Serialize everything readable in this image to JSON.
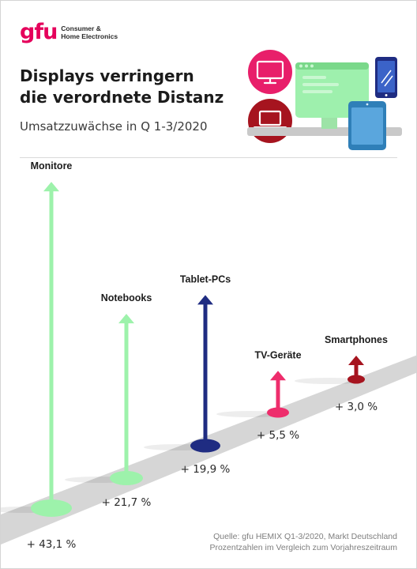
{
  "brand": {
    "mark": "gfu",
    "line1": "Consumer &",
    "line2": "Home Electronics",
    "color": "#e5005b"
  },
  "headline": {
    "line1": "Displays verringern",
    "line2": "die verordnete Distanz"
  },
  "subtitle": "Umsatzzuwächse in Q 1-3/2020",
  "chart_data": {
    "type": "bar",
    "title": "Displays verringern die verordnete Distanz",
    "subtitle": "Umsatzzuwächse in Q 1-3/2020",
    "categories": [
      "Monitore",
      "Notebooks",
      "Tablet-PCs",
      "TV-Geräte",
      "Smartphones"
    ],
    "values": [
      43.1,
      21.7,
      19.9,
      5.5,
      3.0
    ],
    "value_labels": [
      "+ 43,1 %",
      "+ 21,7 %",
      "+ 19,9 %",
      "+ 5,5 %",
      "+ 3,0 %"
    ],
    "unit": "%",
    "colors": [
      "#9df2ab",
      "#9df2ab",
      "#1f2c82",
      "#ee2d6c",
      "#a6141f"
    ],
    "grid": false,
    "legend": "none"
  },
  "icons": {
    "monitor": "monitor-icon",
    "laptop": "laptop-icon",
    "desktop": "desktop-window-icon",
    "phone": "smartphone-icon",
    "tablet": "tablet-icon"
  },
  "source": {
    "line1": "Quelle: gfu HEMIX Q1-3/2020, Markt Deutschland",
    "line2": "Prozentzahlen im Vergleich zum Vorjahreszeitraum"
  }
}
